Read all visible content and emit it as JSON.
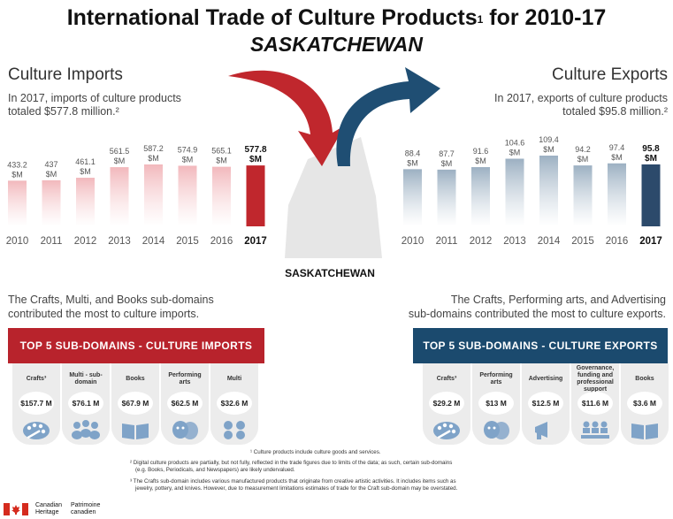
{
  "title_main": "International Trade of Culture Products",
  "title_sup": "1",
  "title_rest": " for 2010-17",
  "subtitle": "SASKATCHEWAN",
  "center_label": "SASKATCHEWAN",
  "imports": {
    "section_title": "Culture Imports",
    "summary": [
      "In 2017, imports of culture products",
      "totaled $577.8 million.²"
    ],
    "paragraph": [
      "The Crafts, Multi, and Books sub-domains",
      "contributed the most to culture imports."
    ],
    "banner": "TOP 5 SUB-DOMAINS - CULTURE IMPORTS",
    "cards": [
      {
        "title": "Crafts³",
        "value": "$157.7 M",
        "icon": "palette-icon"
      },
      {
        "title": "Multi - sub-domain",
        "value": "$76.1 M",
        "icon": "people-icon"
      },
      {
        "title": "Books",
        "value": "$67.9 M",
        "icon": "book-icon"
      },
      {
        "title": "Performing arts",
        "value": "$62.5 M",
        "icon": "theatre-masks-icon"
      },
      {
        "title": "Multi",
        "value": "$32.6 M",
        "icon": "dots-icon"
      }
    ]
  },
  "exports": {
    "section_title": "Culture Exports",
    "summary": [
      "In 2017, exports of culture products",
      "totaled $95.8 million.²"
    ],
    "paragraph": [
      "The Crafts, Performing arts, and Advertising",
      "sub-domains contributed the most to culture exports."
    ],
    "banner": "TOP 5 SUB-DOMAINS - CULTURE EXPORTS",
    "cards": [
      {
        "title": "Crafts³",
        "value": "$29.2 M",
        "icon": "palette-icon"
      },
      {
        "title": "Performing arts",
        "value": "$13 M",
        "icon": "theatre-masks-icon"
      },
      {
        "title": "Advertising",
        "value": "$12.5 M",
        "icon": "megaphone-icon"
      },
      {
        "title": "Governance, funding and professional support",
        "value": "$11.6 M",
        "icon": "meeting-icon"
      },
      {
        "title": "Books",
        "value": "$3.6 M",
        "icon": "book-icon"
      }
    ]
  },
  "chart_data": [
    {
      "type": "bar",
      "name": "imports",
      "categories": [
        "2010",
        "2011",
        "2012",
        "2013",
        "2014",
        "2015",
        "2016",
        "2017"
      ],
      "values": [
        433.2,
        437,
        461.1,
        561.5,
        587.2,
        574.9,
        565.1,
        577.8
      ],
      "data_labels": [
        "433.2",
        "437",
        "461.1",
        "561.5",
        "587.2",
        "574.9",
        "565.1",
        "577.8"
      ],
      "unit_label": "$M",
      "bar_color": "#f2b8bc",
      "highlight_color": "#c0272d",
      "highlight_index": 7
    },
    {
      "type": "bar",
      "name": "exports",
      "categories": [
        "2010",
        "2011",
        "2012",
        "2013",
        "2014",
        "2015",
        "2016",
        "2017"
      ],
      "values": [
        88.4,
        87.7,
        91.6,
        104.6,
        109.4,
        94.2,
        97.4,
        95.8
      ],
      "data_labels": [
        "88.4",
        "87.7",
        "91.6",
        "104.6",
        "109.4",
        "94.2",
        "97.4",
        "95.8"
      ],
      "unit_label": "$M",
      "bar_color": "#9cb0c2",
      "highlight_color": "#2c4a6b",
      "highlight_index": 7
    }
  ],
  "footnotes": [
    "¹ Culture products include culture goods and services.",
    "² Digital culture products are partially, but not fully, reflected in the trade figures due to limits of the data; as such, certain sub-domains",
    "(e.g. Books, Periodicals, and Newspapers) are likely undervalued.",
    "³ The Crafts sub-domain includes various manufactured products that originate from creative artistic activities. It includes items such as",
    "jewelry, pottery, and knives. However, due to measurement limitations estimates of trade for the Craft sub-domain may be overstated."
  ],
  "logo": {
    "en": [
      "Canadian",
      "Heritage"
    ],
    "fr": [
      "Patrimoine",
      "canadien"
    ]
  },
  "colors": {
    "import_red": "#c0272d",
    "export_blue": "#1f4e73",
    "import_banner": "#b8232c",
    "export_banner": "#1b4a6e"
  }
}
